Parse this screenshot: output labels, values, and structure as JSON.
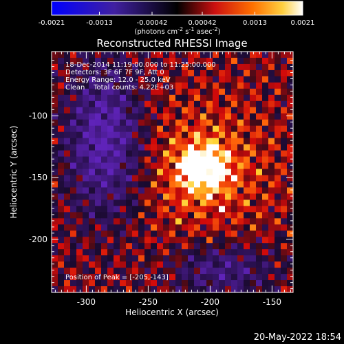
{
  "colorbar": {
    "tick_labels": [
      "-0.0021",
      "-0.0013",
      "-0.00042",
      "0.00042",
      "0.0013",
      "0.0021"
    ],
    "ticks": [
      -0.0021,
      -0.0013,
      -0.00042,
      0.00042,
      0.0013,
      0.0021
    ],
    "range": [
      -0.0021,
      0.0021
    ],
    "units_html": "(photons cm<tspan baseline-shift='super' font-size='8'>-2</tspan> s<tspan baseline-shift='super' font-size='8'>-1</tspan> asec<tspan baseline-shift='super' font-size='8'>-2</tspan>)"
  },
  "chart_data": {
    "type": "heatmap",
    "title": "Reconstructed RHESSI Image",
    "xlabel": "Heliocentric X (arcsec)",
    "ylabel": "Heliocentric Y (arcsec)",
    "xlim": [
      -328,
      -133
    ],
    "ylim": [
      -243,
      -48
    ],
    "x_ticks": [
      -300,
      -250,
      -200,
      -150
    ],
    "y_ticks": [
      -100,
      -150,
      -200
    ],
    "x_tick_labels": [
      "-300",
      "-250",
      "-200",
      "-150"
    ],
    "y_tick_labels": [
      "-100",
      "-150",
      "-200"
    ],
    "peak_position": [
      -205,
      -143
    ],
    "colormap": "rhessi_3",
    "info_lines": [
      "18-Dec-2014 11:19:00.000 to 11:25:00.000",
      "Detectors: 3F 6F 7F 9F, Att 0",
      "Energy Range: 12.0 - 25.0 keV",
      "Clean    Total counts: 4.22E+03"
    ],
    "peak_label": "Position of Peak = [-205,-143]"
  },
  "footer": {
    "date": "20-May-2022 18:54"
  }
}
